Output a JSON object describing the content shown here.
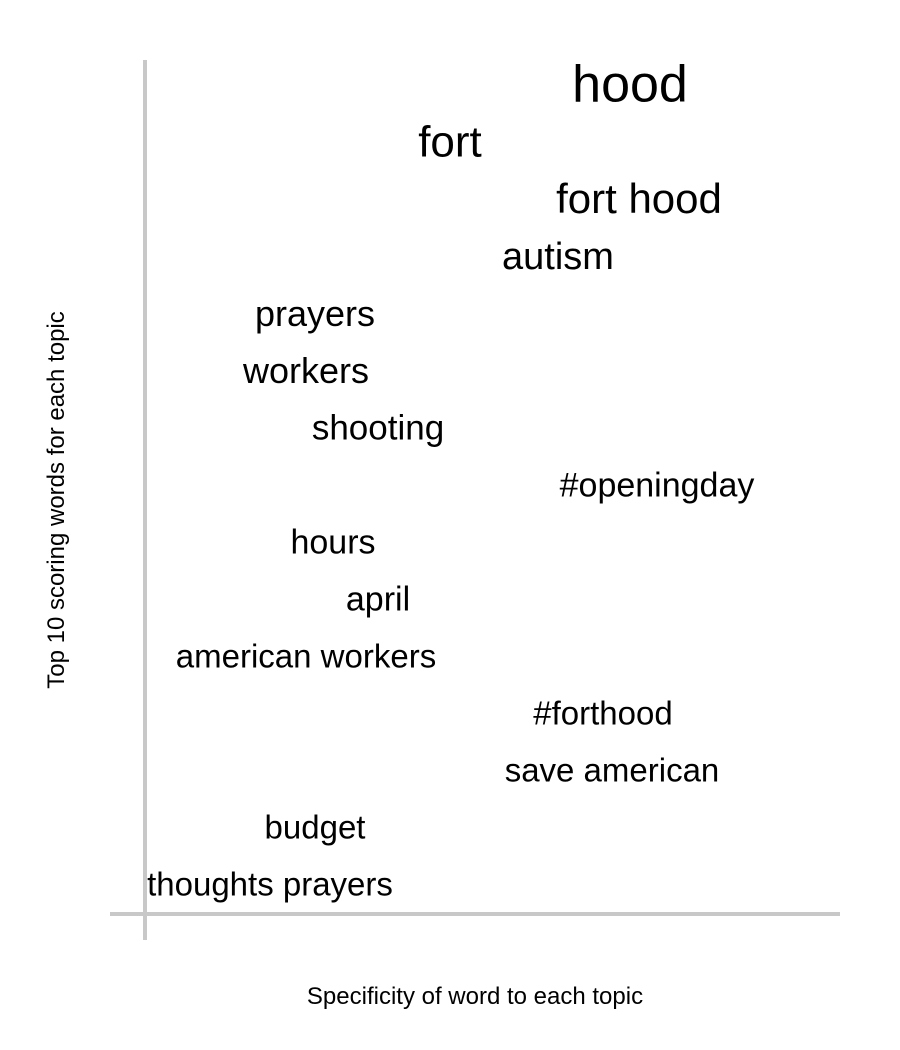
{
  "chart_data": {
    "type": "scatter",
    "title": "",
    "xlabel": "Specificity of word to each topic",
    "ylabel": "Top 10 scoring words for each topic",
    "grid": false,
    "legend": "none",
    "axis_color": "#c8c8c8",
    "text_color": "#000000",
    "words": [
      {
        "text": "hood",
        "x": 0.7,
        "weight": 1.0
      },
      {
        "text": "fort",
        "x": 0.5,
        "weight": 0.8
      },
      {
        "text": "fort hood",
        "x": 0.71,
        "weight": 0.74
      },
      {
        "text": "autism",
        "x": 0.62,
        "weight": 0.63
      },
      {
        "text": "prayers",
        "x": 0.35,
        "weight": 0.58
      },
      {
        "text": "workers",
        "x": 0.34,
        "weight": 0.58
      },
      {
        "text": "shooting",
        "x": 0.42,
        "weight": 0.55
      },
      {
        "text": "#openingday",
        "x": 0.73,
        "weight": 0.52
      },
      {
        "text": "hours",
        "x": 0.37,
        "weight": 0.52
      },
      {
        "text": "april",
        "x": 0.42,
        "weight": 0.52
      },
      {
        "text": "american workers",
        "x": 0.34,
        "weight": 0.5
      },
      {
        "text": "#forthood",
        "x": 0.67,
        "weight": 0.5
      },
      {
        "text": "save american",
        "x": 0.68,
        "weight": 0.5
      },
      {
        "text": "budget",
        "x": 0.35,
        "weight": 0.5
      },
      {
        "text": "thoughts prayers",
        "x": 0.3,
        "weight": 0.5
      }
    ]
  }
}
